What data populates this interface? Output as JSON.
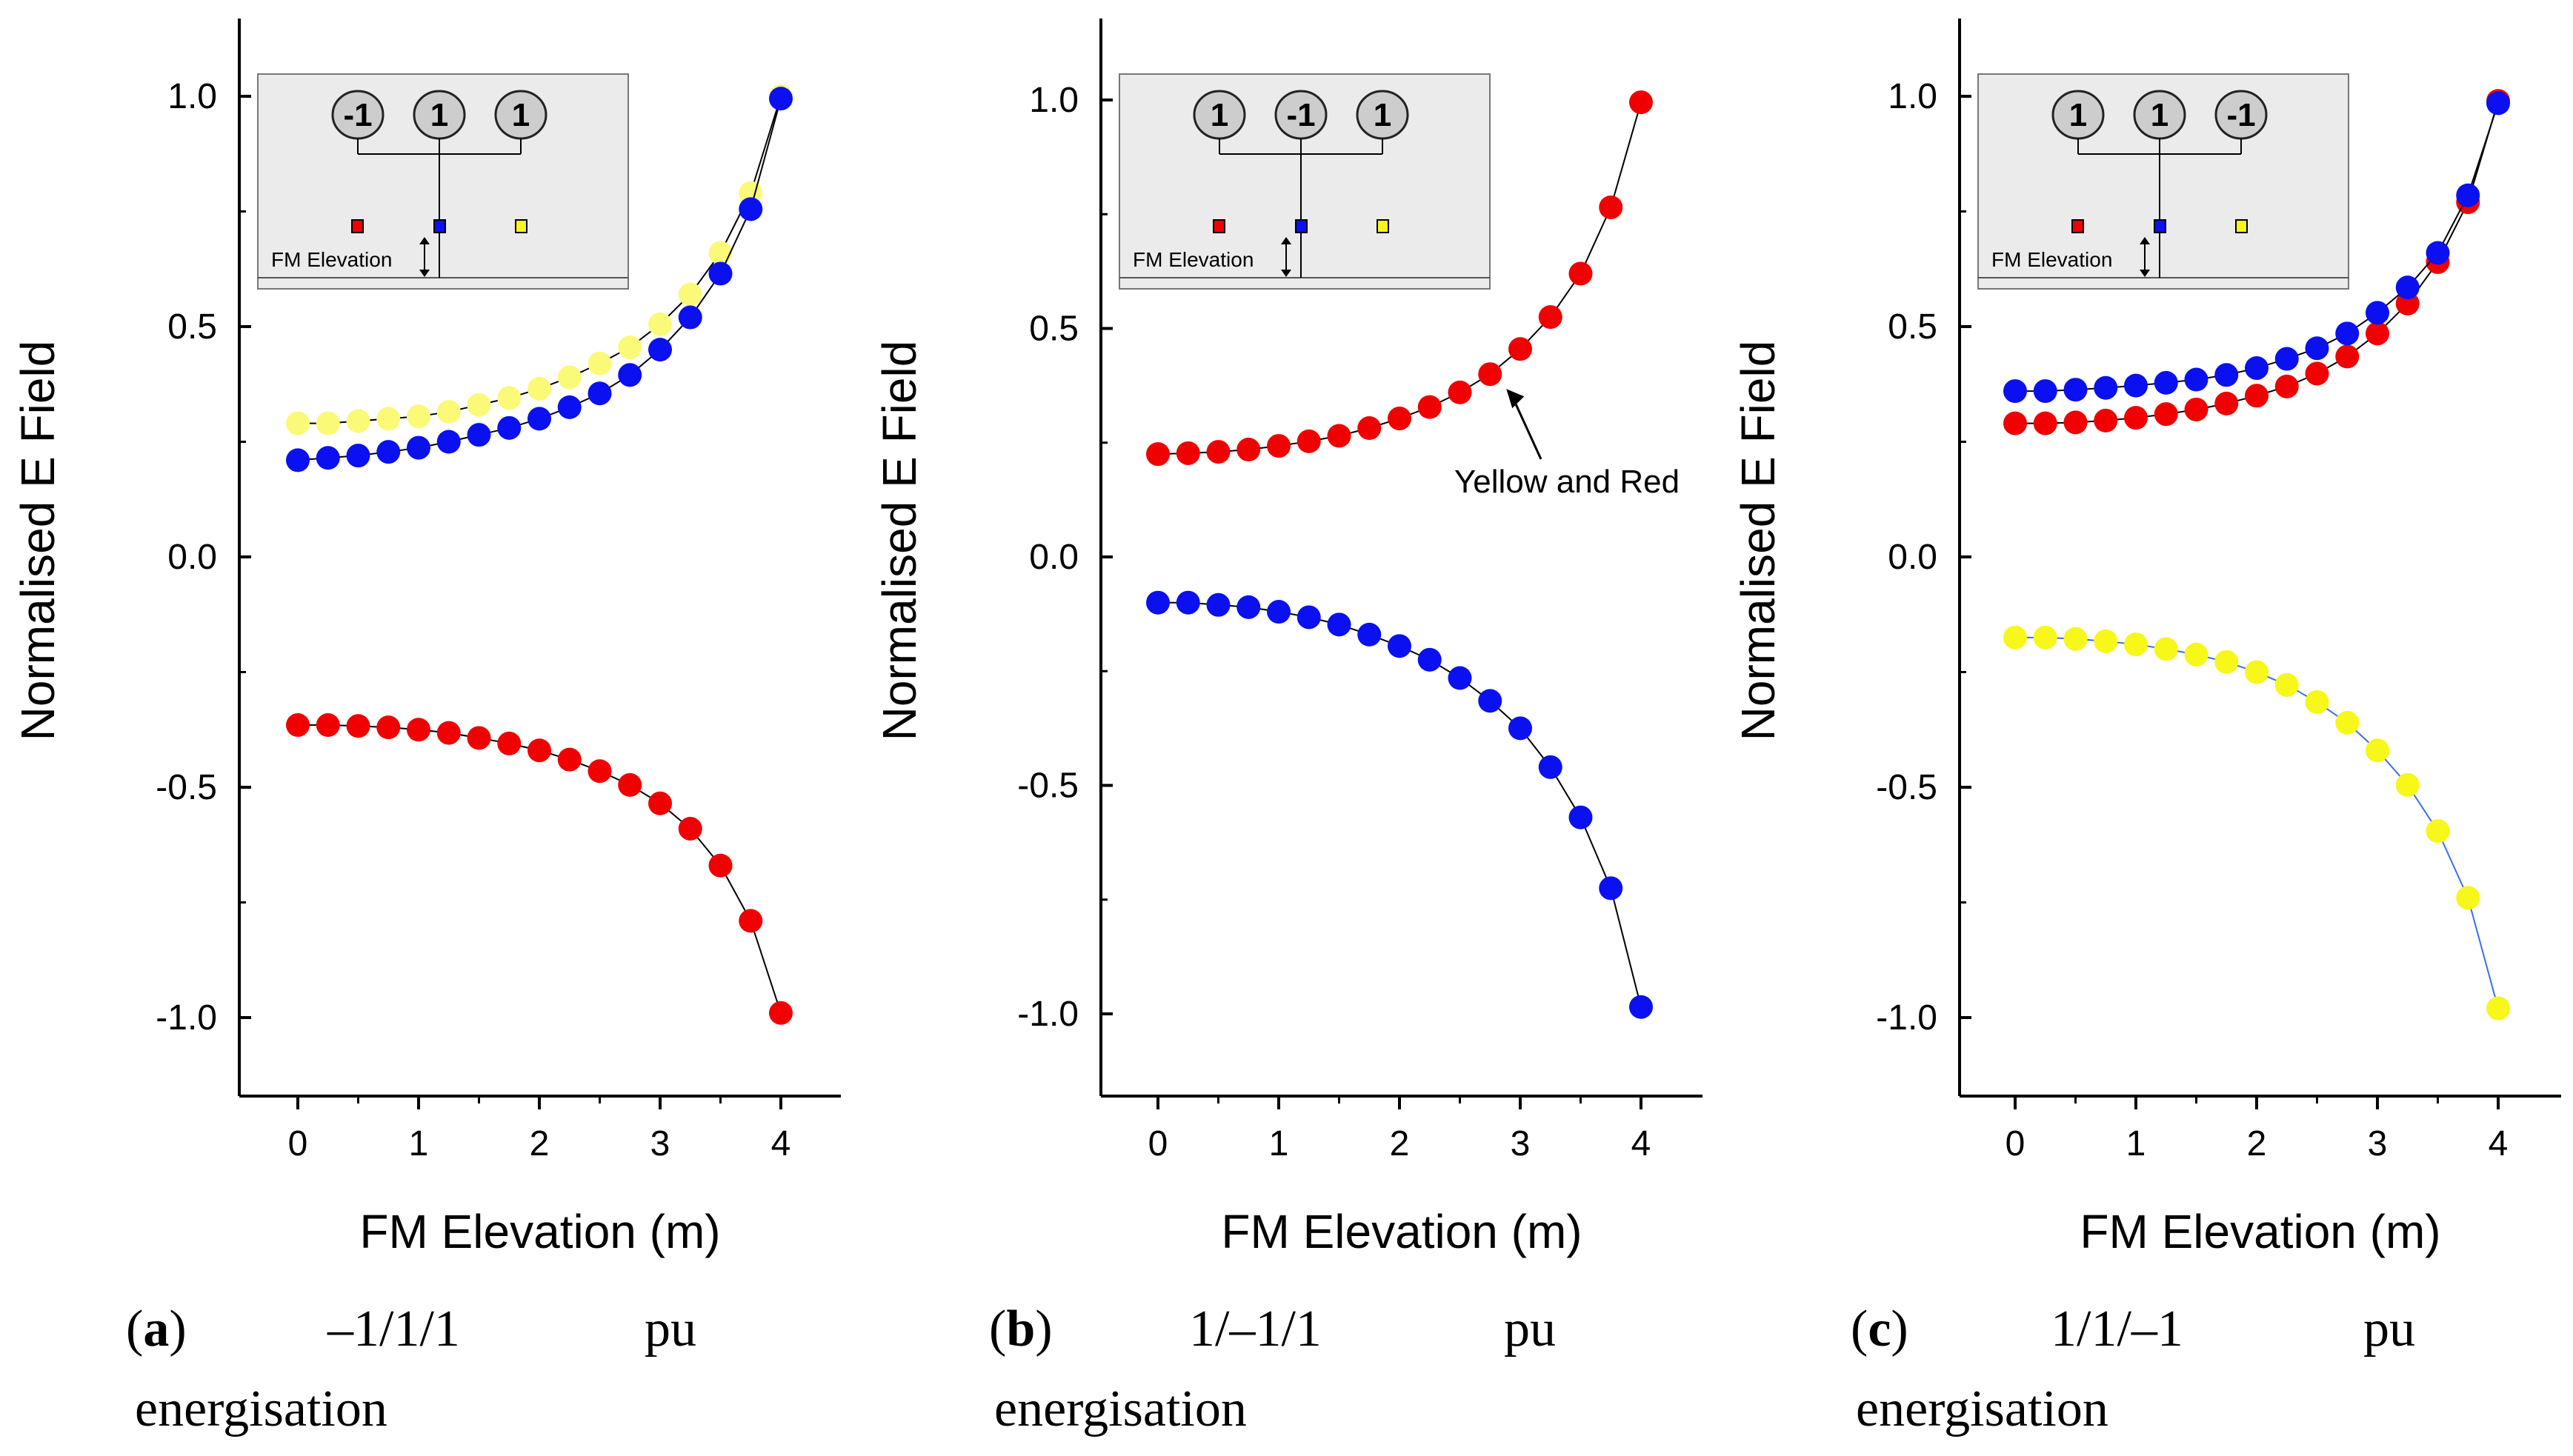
{
  "colors": {
    "red": "#f00000",
    "blue": "#0a10f0",
    "yellow": "#f7f71a",
    "yellow_pale": "#fafa78",
    "inset_bg": "#ebebeb",
    "line": "#000000",
    "blue_line": "#3c6ee6"
  },
  "chart_data": [
    {
      "type": "scatter",
      "panel": "a",
      "xlabel": "FM Elevation (m)",
      "ylabel": "Normalised E Field",
      "xlim": [
        -0.45,
        4.5
      ],
      "ylim": [
        -1.17,
        1.17
      ],
      "xticks": [
        0,
        1,
        2,
        3,
        4
      ],
      "yticks": [
        1.0,
        0.5,
        0.0,
        -0.5,
        -1.0
      ],
      "ytick_labels": [
        "1.0",
        "0.5",
        "0.0",
        "-0.5",
        "-1.0"
      ],
      "x": [
        0,
        0.25,
        0.5,
        0.75,
        1,
        1.25,
        1.5,
        1.75,
        2,
        2.25,
        2.5,
        2.75,
        3,
        3.25,
        3.5,
        3.75,
        4
      ],
      "series": [
        {
          "name": "Yellow",
          "color": "yellow_pale",
          "values": [
            0.29,
            0.29,
            0.295,
            0.3,
            0.305,
            0.315,
            0.33,
            0.345,
            0.365,
            0.39,
            0.42,
            0.455,
            0.505,
            0.57,
            0.66,
            0.79,
            1.0
          ]
        },
        {
          "name": "Blue",
          "color": "blue",
          "values": [
            0.21,
            0.215,
            0.22,
            0.228,
            0.237,
            0.25,
            0.265,
            0.28,
            0.3,
            0.325,
            0.355,
            0.395,
            0.45,
            0.52,
            0.615,
            0.755,
            0.995
          ]
        },
        {
          "name": "Red",
          "color": "red",
          "values": [
            -0.365,
            -0.365,
            -0.367,
            -0.37,
            -0.375,
            -0.382,
            -0.393,
            -0.405,
            -0.42,
            -0.44,
            -0.465,
            -0.495,
            -0.535,
            -0.59,
            -0.67,
            -0.79,
            -0.99
          ]
        }
      ],
      "inset": {
        "circles": [
          "-1",
          "1",
          "1"
        ],
        "label": "FM Elevation"
      },
      "caption": {
        "letter": "a",
        "energisation": "–1/1/1",
        "unit": "pu",
        "second_line": "energisation"
      }
    },
    {
      "type": "scatter",
      "panel": "b",
      "xlabel": "FM Elevation (m)",
      "ylabel": "Normalised E Field",
      "xlim": [
        -0.45,
        4.5
      ],
      "ylim": [
        -1.17,
        1.17
      ],
      "xticks": [
        0,
        1,
        2,
        3,
        4
      ],
      "yticks": [
        1.0,
        0.5,
        0.0,
        -0.5,
        -1.0
      ],
      "ytick_labels": [
        "1.0",
        "0.5",
        "0.0",
        "-0.5",
        "-1.0"
      ],
      "x": [
        0,
        0.25,
        0.5,
        0.75,
        1,
        1.25,
        1.5,
        1.75,
        2,
        2.25,
        2.5,
        2.75,
        3,
        3.25,
        3.5,
        3.75,
        4
      ],
      "series": [
        {
          "name": "Red",
          "color": "red",
          "values": [
            0.225,
            0.227,
            0.23,
            0.235,
            0.243,
            0.253,
            0.265,
            0.282,
            0.303,
            0.328,
            0.36,
            0.4,
            0.455,
            0.525,
            0.62,
            0.765,
            0.995
          ]
        },
        {
          "name": "Blue",
          "color": "blue",
          "values": [
            -0.1,
            -0.1,
            -0.105,
            -0.11,
            -0.12,
            -0.132,
            -0.148,
            -0.17,
            -0.195,
            -0.225,
            -0.265,
            -0.315,
            -0.375,
            -0.46,
            -0.57,
            -0.725,
            -0.985
          ]
        }
      ],
      "annotation": "Yellow and Red",
      "annotation_point": [
        2.75,
        0.4
      ],
      "inset": {
        "circles": [
          "1",
          "-1",
          "1"
        ],
        "label": "FM Elevation"
      },
      "caption": {
        "letter": "b",
        "energisation": "1/–1/1",
        "unit": "pu",
        "second_line": "energisation"
      }
    },
    {
      "type": "scatter",
      "panel": "c",
      "xlabel": "FM Elevation (m)",
      "ylabel": "Normalised E Field",
      "xlim": [
        -0.45,
        4.5
      ],
      "ylim": [
        -1.17,
        1.17
      ],
      "xticks": [
        0,
        1,
        2,
        3,
        4
      ],
      "yticks": [
        1.0,
        0.5,
        0.0,
        -0.5,
        -1.0
      ],
      "ytick_labels": [
        "1.0",
        "0.5",
        "0.0",
        "-0.5",
        "-1.0"
      ],
      "x": [
        0,
        0.25,
        0.5,
        0.75,
        1,
        1.25,
        1.5,
        1.75,
        2,
        2.25,
        2.5,
        2.75,
        3,
        3.25,
        3.5,
        3.75,
        4
      ],
      "series": [
        {
          "name": "Red",
          "color": "red",
          "values": [
            0.29,
            0.29,
            0.292,
            0.296,
            0.302,
            0.31,
            0.32,
            0.333,
            0.35,
            0.37,
            0.398,
            0.435,
            0.485,
            0.55,
            0.64,
            0.77,
            0.99
          ]
        },
        {
          "name": "Blue",
          "color": "blue",
          "values": [
            0.36,
            0.36,
            0.363,
            0.367,
            0.372,
            0.378,
            0.385,
            0.395,
            0.41,
            0.43,
            0.453,
            0.485,
            0.53,
            0.585,
            0.66,
            0.785,
            0.985
          ]
        },
        {
          "name": "Yellow",
          "color": "yellow",
          "values": [
            -0.175,
            -0.175,
            -0.178,
            -0.183,
            -0.19,
            -0.2,
            -0.212,
            -0.228,
            -0.25,
            -0.278,
            -0.315,
            -0.36,
            -0.42,
            -0.495,
            -0.595,
            -0.74,
            -0.98
          ]
        }
      ],
      "inset": {
        "circles": [
          "1",
          "1",
          "-1"
        ],
        "label": "FM Elevation"
      },
      "caption": {
        "letter": "c",
        "energisation": "1/1/–1",
        "unit": "pu",
        "second_line": "energisation"
      }
    }
  ]
}
